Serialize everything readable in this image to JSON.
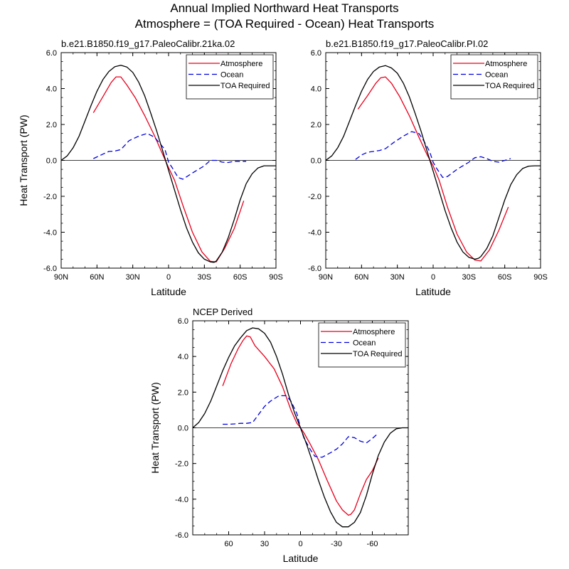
{
  "figure": {
    "title_line1": "Annual Implied Northward Heat Transports",
    "title_line2": "Atmosphere = (TOA Required - Ocean) Heat Transports"
  },
  "chart_data": [
    {
      "type": "line",
      "title": "b.e21.B1850.f19_g17.PaleoCalibr.21ka.02",
      "xlabel": "Latitude",
      "ylabel": "Heat Transport (PW)",
      "xlim": [
        90,
        -90
      ],
      "ylim": [
        -6,
        6
      ],
      "x_ticks": [
        90,
        60,
        30,
        0,
        -30,
        -60,
        -90
      ],
      "x_tick_labels": [
        "90N",
        "60N",
        "30N",
        "0",
        "30S",
        "60S",
        "90S"
      ],
      "y_ticks": [
        6,
        4,
        2,
        0,
        -2,
        -4,
        -6
      ],
      "y_tick_labels": [
        "6.0",
        "4.0",
        "2.0",
        "0.0",
        "-2.0",
        "-4.0",
        "-6.0"
      ],
      "legend_position": "top-right",
      "zero_line": true,
      "series": [
        {
          "name": "Atmosphere",
          "color": "#e8001c",
          "style": "solid",
          "x": [
            63,
            55,
            48,
            44,
            40,
            35,
            28,
            20,
            12,
            5,
            0,
            -5,
            -12,
            -20,
            -28,
            -35,
            -40,
            -47,
            -55,
            -63
          ],
          "y": [
            2.65,
            3.55,
            4.35,
            4.65,
            4.65,
            4.2,
            3.5,
            2.5,
            1.4,
            0.35,
            -0.4,
            -1.1,
            -2.5,
            -4.0,
            -5.1,
            -5.62,
            -5.65,
            -4.9,
            -3.8,
            -2.25
          ]
        },
        {
          "name": "Ocean",
          "color": "#0000e0",
          "style": "dashed",
          "x": [
            63,
            55,
            50,
            45,
            40,
            33,
            25,
            18,
            12,
            8,
            3,
            0,
            -3,
            -8,
            -12,
            -20,
            -30,
            -35,
            -40,
            -45,
            -50,
            -55,
            -60,
            -65
          ],
          "y": [
            0.1,
            0.35,
            0.5,
            0.52,
            0.6,
            1.1,
            1.35,
            1.5,
            1.3,
            1.0,
            0.6,
            -0.1,
            -0.4,
            -0.95,
            -1.05,
            -0.7,
            -0.3,
            0.0,
            0.0,
            -0.1,
            -0.12,
            -0.05,
            -0.05,
            -0.05
          ]
        },
        {
          "name": "TOA Required",
          "color": "#000000",
          "style": "solid",
          "x": [
            90,
            85,
            80,
            75,
            70,
            65,
            60,
            55,
            50,
            45,
            40,
            35,
            30,
            25,
            20,
            15,
            10,
            5,
            0,
            -5,
            -10,
            -15,
            -20,
            -25,
            -30,
            -35,
            -38,
            -40,
            -45,
            -50,
            -55,
            -60,
            -65,
            -70,
            -75,
            -80,
            -85,
            -90
          ],
          "y": [
            0.0,
            0.25,
            0.7,
            1.35,
            2.2,
            3.05,
            3.85,
            4.5,
            4.95,
            5.22,
            5.3,
            5.2,
            4.9,
            4.35,
            3.6,
            2.65,
            1.65,
            0.55,
            -0.55,
            -1.65,
            -2.75,
            -3.75,
            -4.55,
            -5.15,
            -5.5,
            -5.65,
            -5.68,
            -5.6,
            -5.1,
            -4.3,
            -3.3,
            -2.2,
            -1.3,
            -0.75,
            -0.42,
            -0.3,
            -0.3,
            -0.3
          ]
        }
      ]
    },
    {
      "type": "line",
      "title": "b.e21.B1850.f19_g17.PaleoCalibr.PI.02",
      "xlabel": "Latitude",
      "ylabel": "",
      "xlim": [
        90,
        -90
      ],
      "ylim": [
        -6,
        6
      ],
      "x_ticks": [
        90,
        60,
        30,
        0,
        -30,
        -60,
        -90
      ],
      "x_tick_labels": [
        "90N",
        "60N",
        "30N",
        "0",
        "30S",
        "60S",
        "90S"
      ],
      "y_ticks": [
        6,
        4,
        2,
        0,
        -2,
        -4,
        -6
      ],
      "y_tick_labels": [
        "6.0",
        "4.0",
        "2.0",
        "0.0",
        "-2.0",
        "-4.0",
        "-6.0"
      ],
      "legend_position": "top-right",
      "zero_line": true,
      "series": [
        {
          "name": "Atmosphere",
          "color": "#e8001c",
          "style": "solid",
          "x": [
            63,
            55,
            48,
            44,
            40,
            35,
            28,
            20,
            12,
            5,
            0,
            -5,
            -12,
            -20,
            -28,
            -35,
            -40,
            -47,
            -55,
            -63
          ],
          "y": [
            2.85,
            3.6,
            4.3,
            4.6,
            4.65,
            4.3,
            3.55,
            2.5,
            1.3,
            0.3,
            -0.3,
            -1.1,
            -2.6,
            -4.1,
            -5.1,
            -5.55,
            -5.6,
            -5.0,
            -3.9,
            -2.6
          ]
        },
        {
          "name": "Ocean",
          "color": "#0000e0",
          "style": "dashed",
          "x": [
            65,
            60,
            55,
            50,
            45,
            40,
            33,
            25,
            18,
            12,
            8,
            3,
            0,
            -3,
            -8,
            -12,
            -20,
            -30,
            -35,
            -40,
            -45,
            -50,
            -55,
            -60,
            -65
          ],
          "y": [
            0.05,
            0.3,
            0.45,
            0.5,
            0.55,
            0.65,
            1.0,
            1.35,
            1.6,
            1.5,
            1.1,
            0.5,
            -0.1,
            -0.45,
            -0.95,
            -0.9,
            -0.5,
            -0.1,
            0.15,
            0.2,
            0.1,
            -0.05,
            -0.1,
            0.0,
            0.1
          ]
        },
        {
          "name": "TOA Required",
          "color": "#000000",
          "style": "solid",
          "x": [
            90,
            85,
            80,
            75,
            70,
            65,
            60,
            55,
            50,
            45,
            40,
            35,
            30,
            25,
            20,
            15,
            10,
            5,
            0,
            -5,
            -10,
            -15,
            -20,
            -25,
            -30,
            -35,
            -38,
            -40,
            -45,
            -50,
            -55,
            -60,
            -65,
            -70,
            -75,
            -80,
            -85,
            -90
          ],
          "y": [
            0.0,
            0.25,
            0.7,
            1.35,
            2.2,
            3.05,
            3.85,
            4.5,
            4.95,
            5.2,
            5.28,
            5.15,
            4.85,
            4.3,
            3.55,
            2.6,
            1.6,
            0.5,
            -0.6,
            -1.7,
            -2.8,
            -3.75,
            -4.55,
            -5.1,
            -5.4,
            -5.5,
            -5.45,
            -5.35,
            -4.9,
            -4.2,
            -3.2,
            -2.2,
            -1.35,
            -0.8,
            -0.45,
            -0.32,
            -0.3,
            -0.3
          ]
        }
      ]
    },
    {
      "type": "line",
      "title": "NCEP Derived",
      "xlabel": "Latitude",
      "ylabel": "Heat Transport (PW)",
      "xlim": [
        90,
        -90
      ],
      "ylim": [
        -6,
        6
      ],
      "x_ticks": [
        60,
        30,
        0,
        -30,
        -60
      ],
      "x_tick_labels": [
        "60",
        "30",
        "0",
        "-30",
        "-60"
      ],
      "y_ticks": [
        6,
        4,
        2,
        0,
        -2,
        -4,
        -6
      ],
      "y_tick_labels": [
        "6.0",
        "4.0",
        "2.0",
        "0.0",
        "-2.0",
        "-4.0",
        "-6.0"
      ],
      "legend_position": "top-right",
      "zero_line": true,
      "series": [
        {
          "name": "Atmosphere",
          "color": "#e8001c",
          "style": "solid",
          "x": [
            65,
            58,
            52,
            48,
            45,
            42,
            38,
            30,
            22,
            15,
            8,
            3,
            0,
            -3,
            -8,
            -15,
            -22,
            -30,
            -35,
            -40,
            -42,
            -45,
            -50,
            -55,
            -60,
            -65
          ],
          "y": [
            2.35,
            3.6,
            4.45,
            4.9,
            5.15,
            5.1,
            4.6,
            4.0,
            3.3,
            2.3,
            1.0,
            0.25,
            0.0,
            -0.3,
            -0.9,
            -1.8,
            -2.9,
            -4.1,
            -4.6,
            -4.9,
            -4.85,
            -4.6,
            -3.7,
            -2.9,
            -2.4,
            -1.7
          ]
        },
        {
          "name": "Ocean",
          "color": "#0000e0",
          "style": "dashed",
          "x": [
            65,
            60,
            55,
            50,
            45,
            40,
            35,
            30,
            25,
            18,
            12,
            8,
            3,
            0,
            -3,
            -8,
            -12,
            -18,
            -25,
            -30,
            -35,
            -40,
            -45,
            -50,
            -55,
            -60,
            -65
          ],
          "y": [
            0.2,
            0.2,
            0.22,
            0.25,
            0.25,
            0.3,
            0.75,
            1.2,
            1.5,
            1.8,
            1.8,
            1.5,
            0.8,
            0.0,
            -0.6,
            -1.2,
            -1.6,
            -1.65,
            -1.4,
            -1.2,
            -0.9,
            -0.5,
            -0.55,
            -0.75,
            -0.85,
            -0.6,
            -0.3
          ]
        },
        {
          "name": "TOA Required",
          "color": "#000000",
          "style": "solid",
          "x": [
            90,
            85,
            80,
            75,
            70,
            65,
            60,
            55,
            50,
            45,
            40,
            35,
            30,
            25,
            20,
            15,
            10,
            5,
            0,
            -5,
            -10,
            -15,
            -20,
            -25,
            -30,
            -35,
            -40,
            -45,
            -50,
            -55,
            -60,
            -65,
            -70,
            -75,
            -80,
            -85,
            -90
          ],
          "y": [
            0.0,
            0.3,
            0.8,
            1.5,
            2.35,
            3.2,
            3.95,
            4.6,
            5.05,
            5.45,
            5.6,
            5.55,
            5.3,
            4.8,
            4.0,
            3.0,
            1.85,
            0.85,
            0.0,
            -0.9,
            -1.9,
            -2.95,
            -3.9,
            -4.7,
            -5.3,
            -5.55,
            -5.55,
            -5.3,
            -4.75,
            -3.8,
            -2.6,
            -1.55,
            -0.8,
            -0.3,
            -0.05,
            0.0,
            0.0
          ]
        }
      ]
    }
  ]
}
